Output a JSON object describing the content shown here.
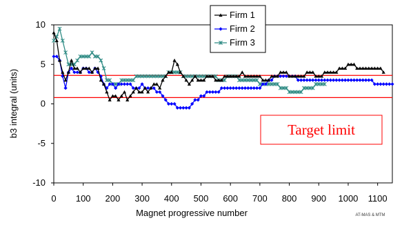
{
  "chart_data": {
    "type": "line",
    "title": "",
    "xlabel": "Magnet progressive number",
    "ylabel": "b3 integral (units)",
    "xlim": [
      0,
      1150
    ],
    "ylim": [
      -10,
      10
    ],
    "x_ticks": [
      "0",
      "100",
      "200",
      "300",
      "400",
      "500",
      "600",
      "700",
      "800",
      "900",
      "1000",
      "1100"
    ],
    "y_ticks": [
      "-10",
      "-5",
      "0",
      "5",
      "10"
    ],
    "grid": false,
    "legend_position": "top-right",
    "target_lines": [
      3.6,
      0.8
    ],
    "target_label": "Target limit",
    "credit": "AT-MAS & MTM",
    "series": [
      {
        "name": "Firm 1",
        "color": "#000000",
        "marker": "triangle",
        "x": [
          0,
          10,
          20,
          30,
          40,
          50,
          60,
          70,
          80,
          90,
          100,
          110,
          120,
          130,
          140,
          150,
          160,
          170,
          180,
          190,
          200,
          210,
          220,
          230,
          240,
          250,
          260,
          270,
          280,
          290,
          300,
          310,
          320,
          330,
          340,
          350,
          360,
          370,
          380,
          390,
          400,
          410,
          420,
          430,
          440,
          450,
          460,
          470,
          480,
          490,
          500,
          510,
          520,
          530,
          540,
          550,
          560,
          570,
          580,
          590,
          600,
          610,
          620,
          630,
          640,
          650,
          660,
          670,
          680,
          690,
          700,
          710,
          720,
          730,
          740,
          750,
          760,
          770,
          780,
          790,
          800,
          810,
          820,
          830,
          840,
          850,
          860,
          870,
          880,
          890,
          900,
          910,
          920,
          930,
          940,
          950,
          960,
          970,
          980,
          990,
          1000,
          1010,
          1020,
          1030,
          1040,
          1050,
          1060,
          1070,
          1080,
          1090,
          1100,
          1110,
          1120
        ],
        "values": [
          9,
          8,
          5.5,
          4,
          3,
          4,
          5.5,
          4.5,
          4.5,
          4,
          4.5,
          4.5,
          4.5,
          4,
          4.5,
          4.5,
          3,
          2.5,
          1.5,
          0.5,
          1,
          1,
          0.5,
          1,
          1.5,
          0.5,
          1,
          1.5,
          2,
          1.5,
          1.5,
          2,
          1.5,
          2,
          2.5,
          2.5,
          2,
          3,
          3.5,
          4,
          4,
          5.5,
          5,
          4,
          3.5,
          3,
          2.5,
          3,
          3.5,
          3,
          3,
          3,
          3.5,
          3.5,
          3.5,
          3,
          3,
          3,
          3.5,
          3.5,
          3.5,
          3.5,
          3.5,
          3.5,
          4,
          3.5,
          3.5,
          3.5,
          3.5,
          3.5,
          3.5,
          3,
          3,
          3,
          3.5,
          3.5,
          3.5,
          4,
          4,
          4,
          3.5,
          3.5,
          3.5,
          3.5,
          3.5,
          3.5,
          4,
          4,
          4,
          3.5,
          3.5,
          3.5,
          4,
          4,
          4,
          4,
          4,
          4.5,
          4.5,
          4.5,
          5,
          5,
          5,
          4.5,
          4.5,
          4.5,
          4.5,
          4.5,
          4.5,
          4.5,
          4.5,
          4.5,
          4
        ]
      },
      {
        "name": "Firm 2",
        "color": "#0000ff",
        "marker": "diamond",
        "x": [
          0,
          10,
          20,
          30,
          40,
          50,
          60,
          70,
          80,
          90,
          100,
          110,
          120,
          130,
          140,
          150,
          160,
          170,
          180,
          190,
          200,
          210,
          220,
          230,
          240,
          250,
          260,
          270,
          280,
          290,
          300,
          310,
          320,
          330,
          340,
          350,
          360,
          370,
          380,
          390,
          400,
          410,
          420,
          430,
          440,
          450,
          460,
          470,
          480,
          490,
          500,
          510,
          520,
          530,
          540,
          550,
          560,
          570,
          580,
          590,
          600,
          610,
          620,
          630,
          640,
          650,
          660,
          670,
          680,
          690,
          700,
          710,
          720,
          730,
          740,
          750,
          760,
          770,
          780,
          790,
          800,
          810,
          820,
          830,
          840,
          850,
          860,
          870,
          880,
          890,
          900,
          910,
          920,
          930,
          940,
          950,
          960,
          970,
          980,
          990,
          1000,
          1010,
          1020,
          1030,
          1040,
          1050,
          1060,
          1070,
          1080,
          1090,
          1100,
          1110,
          1120,
          1130,
          1140,
          1150
        ],
        "values": [
          6,
          6,
          5.5,
          3.5,
          2,
          4,
          4.5,
          4,
          4,
          4,
          4.5,
          4.5,
          4,
          4,
          4.5,
          4,
          3.5,
          2.5,
          2,
          2.5,
          2.5,
          2,
          2.5,
          2.5,
          2.5,
          2.5,
          2.5,
          2,
          2,
          2,
          2.5,
          2,
          2,
          2,
          2,
          1.5,
          1.5,
          1,
          0.5,
          0,
          0,
          0,
          -0.5,
          -0.5,
          -0.5,
          -0.5,
          -0.5,
          0,
          0.5,
          0.5,
          1,
          1,
          1.5,
          1.5,
          1.5,
          1.5,
          1.5,
          2,
          2,
          2,
          2,
          2,
          2,
          2,
          2,
          2,
          2,
          2,
          2,
          2,
          2,
          2.5,
          2.5,
          3,
          3,
          3.5,
          3.5,
          3.5,
          3.5,
          3.5,
          3.5,
          3.5,
          3.5,
          3,
          3,
          3,
          3,
          3,
          3,
          3,
          3,
          3,
          3,
          3,
          3,
          3,
          3,
          3,
          3,
          3,
          3,
          3,
          3,
          3,
          3,
          3,
          3,
          3,
          3,
          2.5,
          2.5,
          2.5,
          2.5,
          2.5,
          2.5,
          2.5
        ]
      },
      {
        "name": "Firm 3",
        "color": "#2e8b84",
        "marker": "star",
        "x": [
          0,
          10,
          20,
          30,
          40,
          50,
          60,
          70,
          80,
          90,
          100,
          110,
          120,
          130,
          140,
          150,
          160,
          170,
          180,
          190,
          200,
          210,
          220,
          230,
          240,
          250,
          260,
          270,
          280,
          290,
          300,
          310,
          320,
          330,
          340,
          350,
          360,
          370,
          380,
          390,
          400,
          410,
          420,
          430,
          440,
          450,
          460,
          470,
          480,
          490,
          500,
          510,
          520,
          530,
          540,
          550,
          560,
          570,
          580,
          590,
          600,
          610,
          620,
          630,
          640,
          650,
          660,
          670,
          680,
          690,
          700,
          710,
          720,
          730,
          740,
          750,
          760,
          770,
          780,
          790,
          800,
          810,
          820,
          830,
          840,
          850,
          860,
          870,
          880,
          890,
          900,
          910,
          920
        ],
        "values": [
          8,
          8.5,
          9.5,
          8,
          6.5,
          5,
          5,
          5,
          5.5,
          6,
          6,
          6,
          6,
          6.5,
          6,
          6,
          5.5,
          4.5,
          3,
          3,
          2.5,
          2.5,
          2.5,
          3,
          3,
          3,
          3,
          3,
          3.5,
          3.5,
          3.5,
          3.5,
          3.5,
          3.5,
          3.5,
          3.5,
          3.5,
          3.5,
          3.5,
          4,
          4,
          4,
          4,
          4,
          3.5,
          3.5,
          3.5,
          3.5,
          3.5,
          3.5,
          3.5,
          3.5,
          3.5,
          3.5,
          3.5,
          3.5,
          3,
          3,
          3,
          3.5,
          3.5,
          3.5,
          3.5,
          3,
          3,
          3,
          3,
          3,
          3,
          3,
          2.5,
          2.5,
          2.5,
          2.5,
          2.5,
          2.5,
          2.5,
          2,
          2,
          2,
          1.5,
          1.5,
          1.5,
          1.5,
          1.5,
          2,
          2,
          2,
          2,
          2.5,
          2.5,
          2.5,
          2.5
        ]
      }
    ]
  }
}
